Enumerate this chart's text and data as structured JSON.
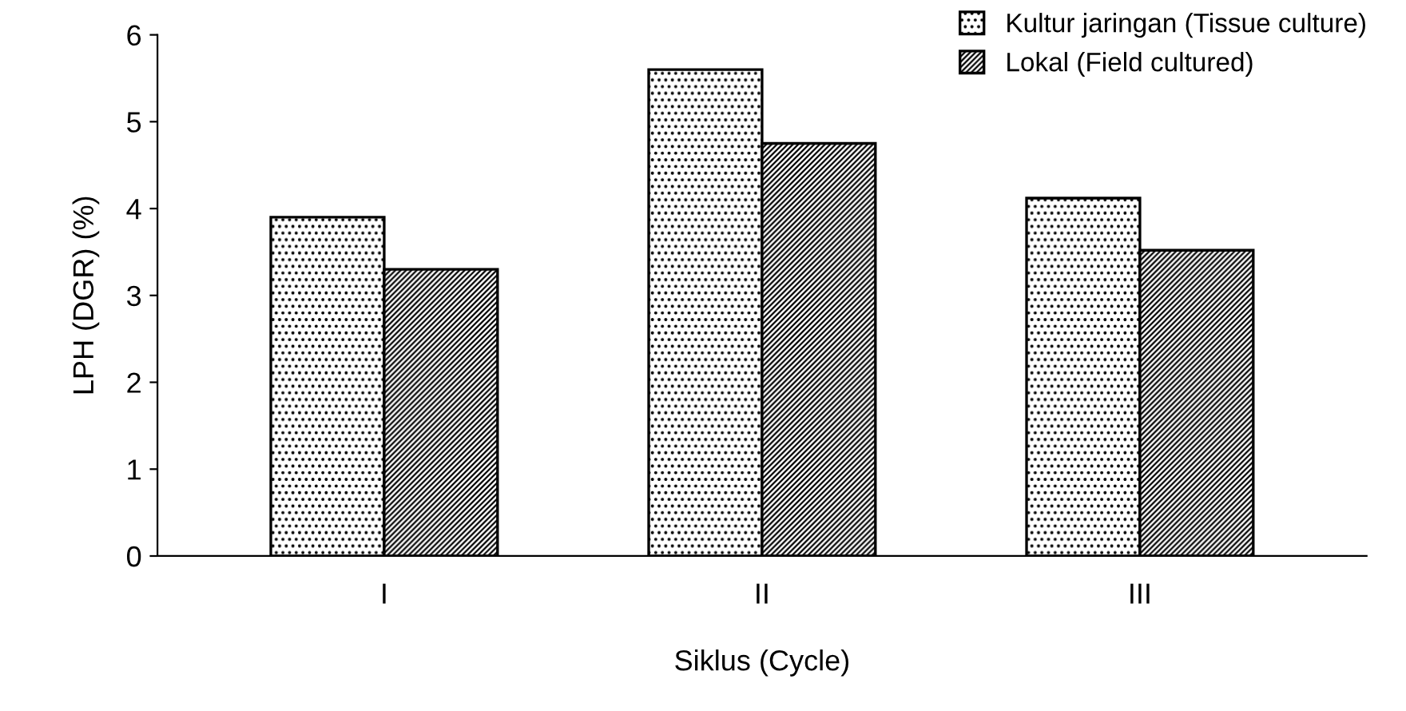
{
  "chart_data": {
    "type": "bar",
    "xlabel": "Siklus (Cycle)",
    "ylabel": "LPH (DGR) (%)",
    "categories": [
      "I",
      "II",
      "III"
    ],
    "series": [
      {
        "name": "Kultur jaringan (Tissue culture)",
        "color": "#000000",
        "values": [
          3.9,
          5.6,
          4.12
        ]
      },
      {
        "name": "Lokal (Field cultured)",
        "color": "#000000",
        "values": [
          3.3,
          4.75,
          3.52
        ]
      }
    ],
    "ylim": [
      0,
      6
    ],
    "yticks": [
      0,
      1,
      2,
      3,
      4,
      5,
      6
    ],
    "grid": false,
    "legend": "top right"
  }
}
